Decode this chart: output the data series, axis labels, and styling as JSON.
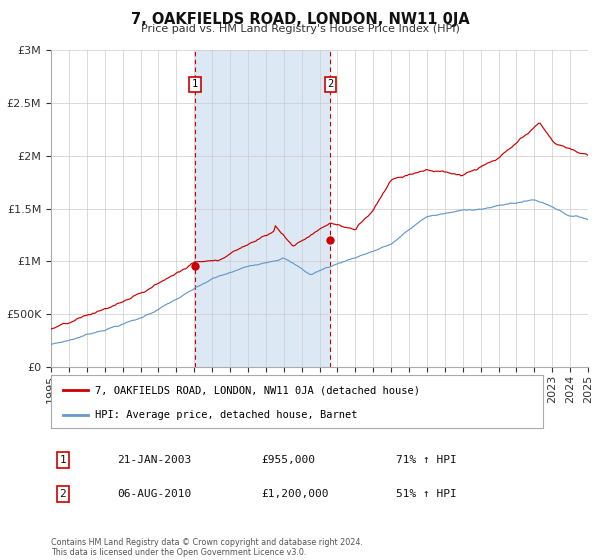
{
  "title": "7, OAKFIELDS ROAD, LONDON, NW11 0JA",
  "subtitle": "Price paid vs. HM Land Registry's House Price Index (HPI)",
  "property_label": "7, OAKFIELDS ROAD, LONDON, NW11 0JA (detached house)",
  "hpi_label": "HPI: Average price, detached house, Barnet",
  "sale1_date": "21-JAN-2003",
  "sale1_price": "£955,000",
  "sale1_hpi": "71% ↑ HPI",
  "sale2_date": "06-AUG-2010",
  "sale2_price": "£1,200,000",
  "sale2_hpi": "51% ↑ HPI",
  "sale1_year": 2003.05,
  "sale1_price_val": 955000,
  "sale2_year": 2010.6,
  "sale2_price_val": 1200000,
  "property_color": "#cc0000",
  "hpi_color": "#6699cc",
  "shaded_color": "#dce9f5",
  "background_color": "#ffffff",
  "grid_color": "#cccccc",
  "footer": "Contains HM Land Registry data © Crown copyright and database right 2024.\nThis data is licensed under the Open Government Licence v3.0.",
  "ylim": [
    0,
    3000000
  ],
  "yticks": [
    0,
    500000,
    1000000,
    1500000,
    2000000,
    2500000,
    3000000
  ],
  "ytick_labels": [
    "£0",
    "£500K",
    "£1M",
    "£1.5M",
    "£2M",
    "£2.5M",
    "£3M"
  ],
  "xstart": 1995,
  "xend": 2025
}
